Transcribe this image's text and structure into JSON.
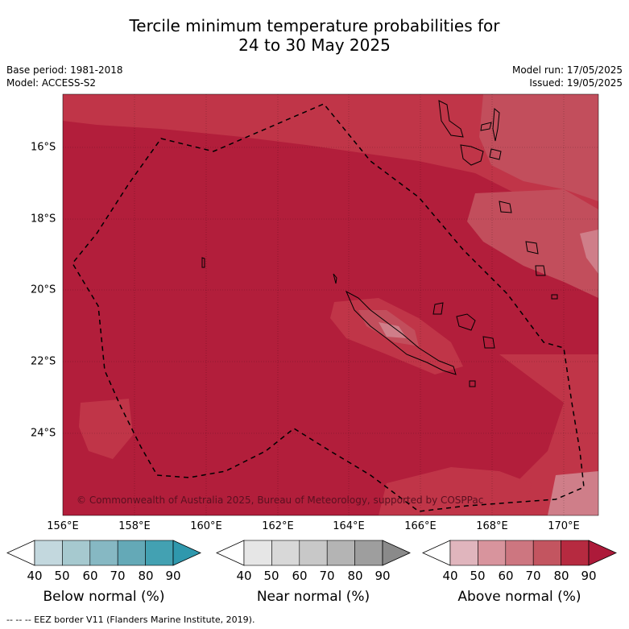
{
  "title_line1": "Tercile minimum temperature probabilities for",
  "title_line2": "24 to 30 May 2025",
  "base_period": "Base period: 1981-2018",
  "model": "Model: ACCESS-S2",
  "model_run": "Model run: 17/05/2025",
  "issued": "Issued: 19/05/2025",
  "copyright": "© Commonwealth of Australia 2025, Bureau of Meteorology, supported by COSPPac",
  "lat_labels": [
    "16°S",
    "18°S",
    "20°S",
    "22°S",
    "24°S"
  ],
  "lon_labels": [
    "156°E",
    "158°E",
    "160°E",
    "162°E",
    "164°E",
    "166°E",
    "168°E",
    "170°E"
  ],
  "colorbars": [
    {
      "title": "Below normal (%)",
      "ticks": [
        "40",
        "50",
        "60",
        "70",
        "80",
        "90"
      ],
      "colors": [
        "#ffffff",
        "#c3d8de",
        "#a6c9cf",
        "#86b8c3",
        "#64a9b7",
        "#43a1b2",
        "#2f98ad"
      ]
    },
    {
      "title": "Near normal (%)",
      "ticks": [
        "40",
        "50",
        "60",
        "70",
        "80",
        "90"
      ],
      "colors": [
        "#ffffff",
        "#e6e6e6",
        "#d8d8d8",
        "#c8c8c8",
        "#b4b4b4",
        "#9e9e9e",
        "#8a8a8a"
      ]
    },
    {
      "title": "Above normal (%)",
      "ticks": [
        "40",
        "50",
        "60",
        "70",
        "80",
        "90"
      ],
      "colors": [
        "#ffffff",
        "#e0b5bd",
        "#d8949d",
        "#cd7680",
        "#c35560",
        "#b62a40",
        "#ad1a3a"
      ]
    }
  ],
  "footnote": "-- -- -- EEZ border V11 (Flanders Marine Institute, 2019).",
  "colors": {
    "above_80_90": "#b21e3b",
    "above_70_80": "#c03548",
    "above_60_70": "#c24e5c",
    "above_50_60": "#cf7e89"
  }
}
